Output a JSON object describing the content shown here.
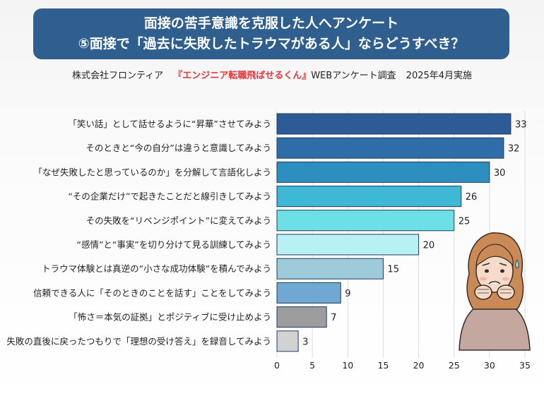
{
  "header": {
    "title_line1": "面接の苦手意識を克服した人へアンケート",
    "title_line2": "⑤面接で「過去に失敗したトラウマがある人」ならどうすべき？"
  },
  "source": {
    "company": "株式会社フロンティア",
    "service": "『エンジニア転職飛ばせるくん』",
    "survey": "WEBアンケート調査",
    "date": "2025年4月実施"
  },
  "colors": {
    "banner": "#2f5f8e",
    "brand_red": "#e8343a"
  },
  "illustration": {
    "icon": "worried-woman-illustration"
  },
  "chart_data": {
    "type": "bar",
    "orientation": "horizontal",
    "categories": [
      "「笑い話」として話せるように“昇華”させてみよう",
      "そのときと“今の自分”は違うと意識してみよう",
      "「なぜ失敗したと思っているのか」を分解して言語化しよう",
      "“その企業だけ”で起きたことだと線引きしてみよう",
      "その失敗を“リベンジポイント”に変えてみよう",
      "“感情”と“事実”を切り分けて見る訓練してみよう",
      "トラウマ体験とは真逆の“小さな成功体験”を積んでみよう",
      "信頼できる人に「そのときのことを話す」ことをしてみよう",
      "「怖さ＝本気の証拠」とポジティブに受け止めよう",
      "失敗の直後に戻ったつもりで「理想の受け答え」を録音してみよう"
    ],
    "values": [
      33,
      32,
      30,
      26,
      25,
      20,
      15,
      9,
      7,
      3
    ],
    "bar_colors": [
      "#2c5b97",
      "#2f6da8",
      "#2d8fc0",
      "#3fb8d6",
      "#6ce0e6",
      "#b8f1f5",
      "#9ecbdc",
      "#6fa8d2",
      "#9d9d9d",
      "#d2d2d2"
    ],
    "xlim": [
      0,
      35
    ],
    "xticks": [
      0,
      5,
      10,
      15,
      20,
      25,
      30,
      35
    ],
    "grid": "vertical"
  }
}
